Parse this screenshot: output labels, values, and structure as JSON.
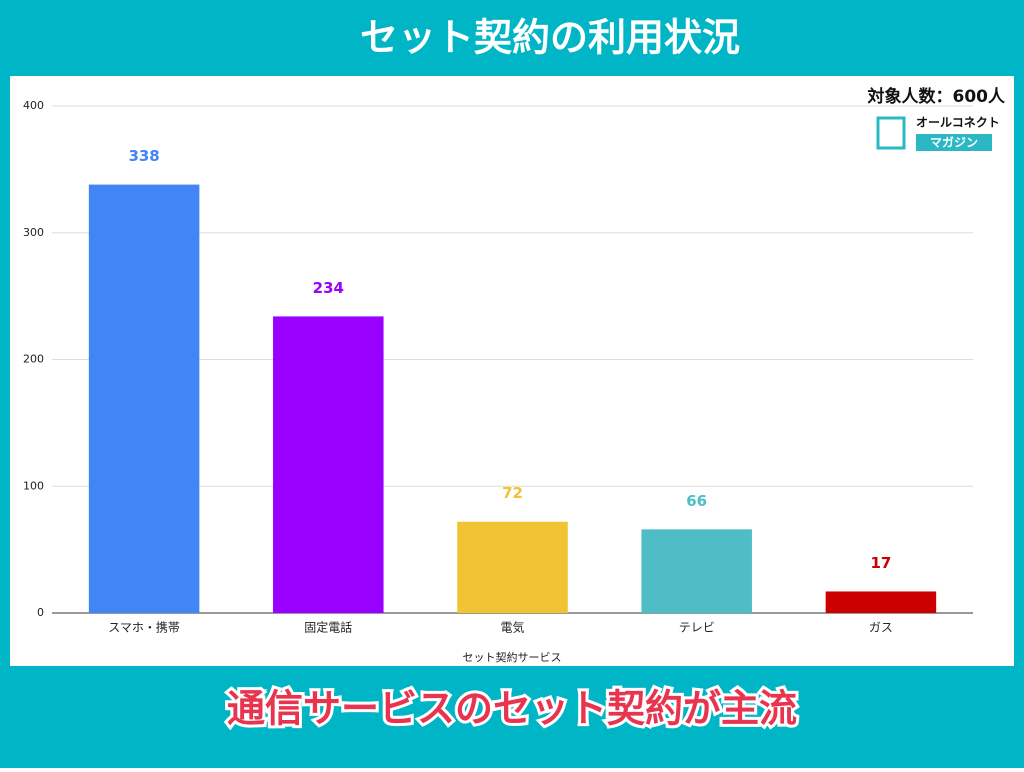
{
  "header": {
    "title": "セット契約の利用状況"
  },
  "logo": {
    "line1": "オールコネクト",
    "line2": "マガジン"
  },
  "footer": {
    "text": "通信サービスのセット契約が主流"
  },
  "chart_data": {
    "type": "bar",
    "subtitle": "対象人数：600人",
    "x_label": "セット契約サービス",
    "categories": [
      "スマホ・携帯",
      "固定電話",
      "電気",
      "テレビ",
      "ガス"
    ],
    "values": [
      338,
      234,
      72,
      66,
      17
    ],
    "colors": [
      "#4285f4",
      "#9900ff",
      "#f1c232",
      "#4fbdc6",
      "#cc0000"
    ],
    "ylim": [
      0,
      400
    ],
    "yticks": [
      0,
      100,
      200,
      300,
      400
    ],
    "grid": true
  }
}
